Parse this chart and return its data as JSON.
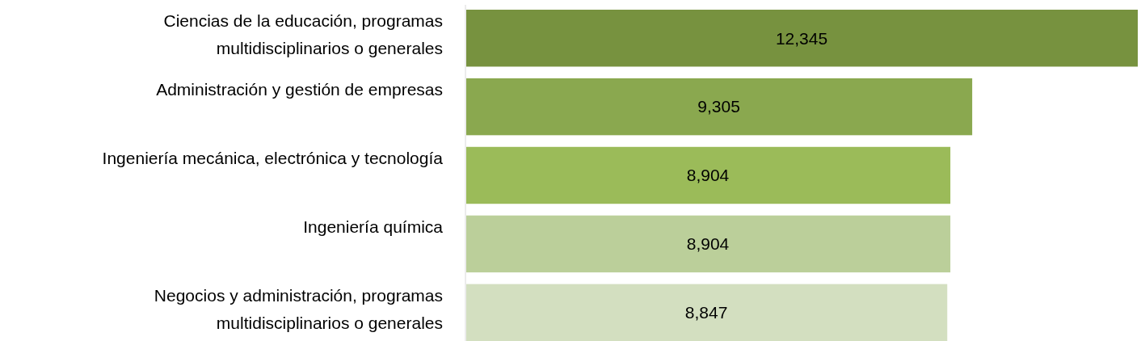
{
  "chart_data": {
    "type": "bar",
    "orientation": "horizontal",
    "categories": [
      "Ciencias de la educación, programas multidisciplinarios o generales",
      "Administración y gestión de empresas",
      "Ingeniería mecánica, electrónica y tecnología",
      "Ingeniería química",
      "Negocios y administración, programas multidisciplinarios o generales"
    ],
    "values": [
      12345,
      9305,
      8904,
      8904,
      8847
    ],
    "colors": [
      "#77923f",
      "#8aa84f",
      "#9bbb59",
      "#bbcf9a",
      "#d3dfc0"
    ],
    "value_labels": [
      "12,345",
      "9,305",
      "8,904",
      "8,904",
      "8,847"
    ],
    "relative": false,
    "grid": false,
    "legend": false
  }
}
